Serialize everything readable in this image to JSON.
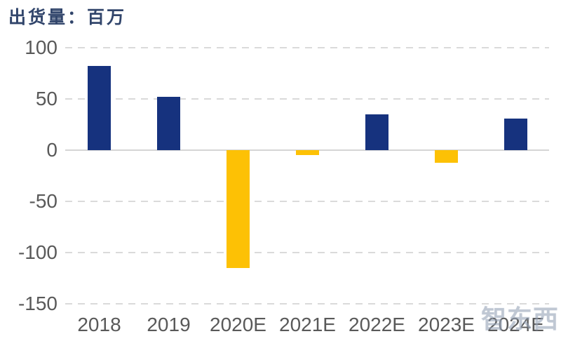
{
  "header": {
    "title": "出货量：百万"
  },
  "watermark": {
    "text": "智东西"
  },
  "colors": {
    "positive_bar": "#16327E",
    "negative_bar": "#FDC105",
    "grid_line": "#DADADA",
    "zero_line": "#D5D5D5",
    "tick_label": "#595959",
    "title_text": "#31456B"
  },
  "chart_data": {
    "type": "bar",
    "title": "出货量：百万",
    "categories": [
      "2018",
      "2019",
      "2020E",
      "2021E",
      "2022E",
      "2023E",
      "2024E"
    ],
    "values": [
      82,
      52,
      -115,
      -5,
      35,
      -12,
      31
    ],
    "bar_colors": [
      "#16327E",
      "#16327E",
      "#FDC105",
      "#FDC105",
      "#16327E",
      "#FDC105",
      "#16327E"
    ],
    "xlabel": "",
    "ylabel": "出货量：百万",
    "ylim": [
      -150,
      100
    ],
    "yticks": [
      100,
      50,
      0,
      -50,
      -100,
      -150
    ],
    "grid": "horizontal-dashed, zero line solid",
    "legend": "none"
  }
}
